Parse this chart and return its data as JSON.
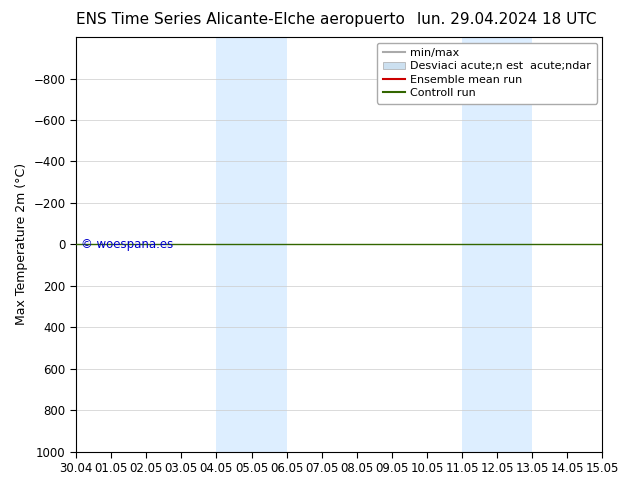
{
  "title_left": "ENS Time Series Alicante-Elche aeropuerto",
  "title_right": "lun. 29.04.2024 18 UTC",
  "ylabel": "Max Temperature 2m (°C)",
  "ylim_bottom": 1000,
  "ylim_top": -1000,
  "yticks": [
    -800,
    -600,
    -400,
    -200,
    0,
    200,
    400,
    600,
    800,
    1000
  ],
  "xtick_labels": [
    "30.04",
    "01.05",
    "02.05",
    "03.05",
    "04.05",
    "05.05",
    "06.05",
    "07.05",
    "08.05",
    "09.05",
    "10.05",
    "11.05",
    "12.05",
    "13.05",
    "14.05",
    "15.05"
  ],
  "shaded_regions": [
    {
      "xmin": 4,
      "xmax": 6,
      "color": "#ddeeff"
    },
    {
      "xmin": 11,
      "xmax": 13,
      "color": "#ddeeff"
    }
  ],
  "horizontal_line_y": 0,
  "horizontal_line_color": "#336600",
  "watermark_text": "© woespana.es",
  "watermark_color": "#0000cc",
  "legend_items": [
    {
      "label": "min/max",
      "color": "#aaaaaa",
      "lw": 1.5,
      "type": "line"
    },
    {
      "label": "Desviaci acute;n est  acute;ndar",
      "color": "#cce0f0",
      "lw": 8,
      "type": "patch"
    },
    {
      "label": "Ensemble mean run",
      "color": "#cc0000",
      "lw": 1.5,
      "type": "line"
    },
    {
      "label": "Controll run",
      "color": "#336600",
      "lw": 1.5,
      "type": "line"
    }
  ],
  "bg_color": "#ffffff",
  "plot_bg_color": "#ffffff",
  "border_color": "#000000",
  "title_fontsize": 11,
  "axis_fontsize": 9,
  "tick_fontsize": 8.5,
  "legend_fontsize": 8
}
